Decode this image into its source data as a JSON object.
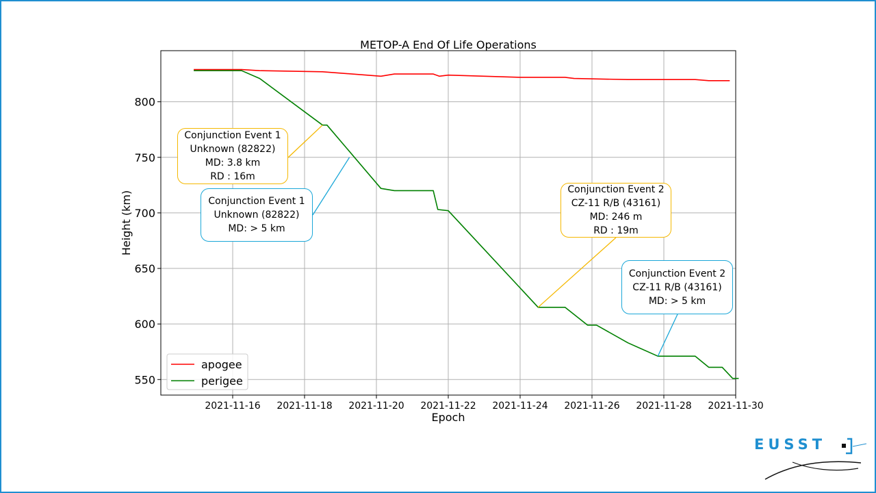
{
  "chart_data": {
    "type": "line",
    "title": "METOP-A End Of Life Operations",
    "xlabel": "Epoch",
    "ylabel": "Height (km)",
    "xlim": [
      "2021-11-14T00:00",
      "2021-11-30T00:00"
    ],
    "ylim": [
      536,
      846
    ],
    "x_ticks": [
      "2021-11-16",
      "2021-11-18",
      "2021-11-20",
      "2021-11-22",
      "2021-11-24",
      "2021-11-26",
      "2021-11-28",
      "2021-11-30"
    ],
    "y_ticks": [
      550,
      600,
      650,
      700,
      750,
      800
    ],
    "grid": true,
    "legend_position": "lower-left",
    "series": [
      {
        "name": "apogee",
        "color": "#ff0000",
        "points": [
          [
            "2021-11-14T22:00",
            829
          ],
          [
            "2021-11-16T06:00",
            829
          ],
          [
            "2021-11-16T18:00",
            828
          ],
          [
            "2021-11-18T12:00",
            827
          ],
          [
            "2021-11-20T03:00",
            823
          ],
          [
            "2021-11-20T12:00",
            825
          ],
          [
            "2021-11-21T14:00",
            825
          ],
          [
            "2021-11-21T18:00",
            823
          ],
          [
            "2021-11-22T00:00",
            824
          ],
          [
            "2021-11-24T00:00",
            822
          ],
          [
            "2021-11-25T06:00",
            822
          ],
          [
            "2021-11-25T12:00",
            821
          ],
          [
            "2021-11-27T00:00",
            820
          ],
          [
            "2021-11-28T21:00",
            820
          ],
          [
            "2021-11-29T06:00",
            819
          ],
          [
            "2021-11-29T20:00",
            819
          ]
        ]
      },
      {
        "name": "perigee",
        "color": "#008000",
        "points": [
          [
            "2021-11-14T22:00",
            828
          ],
          [
            "2021-11-16T06:00",
            828
          ],
          [
            "2021-11-16T18:00",
            821
          ],
          [
            "2021-11-18T12:00",
            779
          ],
          [
            "2021-11-18T15:00",
            779
          ],
          [
            "2021-11-20T03:00",
            722
          ],
          [
            "2021-11-20T12:00",
            720
          ],
          [
            "2021-11-21T14:00",
            720
          ],
          [
            "2021-11-21T17:00",
            703
          ],
          [
            "2021-11-22T00:00",
            702
          ],
          [
            "2021-11-24T12:00",
            615
          ],
          [
            "2021-11-25T06:00",
            615
          ],
          [
            "2021-11-25T21:00",
            599
          ],
          [
            "2021-11-26T03:00",
            599
          ],
          [
            "2021-11-27T00:00",
            583
          ],
          [
            "2021-11-27T20:00",
            571
          ],
          [
            "2021-11-28T21:00",
            571
          ],
          [
            "2021-11-29T06:00",
            561
          ],
          [
            "2021-11-29T15:00",
            561
          ],
          [
            "2021-11-29T22:00",
            551
          ],
          [
            "2021-11-30T02:00",
            551
          ]
        ]
      }
    ],
    "annotations": [
      {
        "id": "ce1-orange",
        "style": "orange",
        "lines": [
          "Conjunction Event 1",
          "Unknown (82822)",
          "MD: 3.8 km",
          "RD : 16m"
        ],
        "target": [
          "2021-11-18T12:00",
          779
        ]
      },
      {
        "id": "ce1-blue",
        "style": "blue",
        "lines": [
          "Conjunction Event 1",
          "Unknown (82822)",
          "MD: > 5 km"
        ],
        "target": [
          "2021-11-19T06:00",
          750
        ]
      },
      {
        "id": "ce2-orange",
        "style": "orange",
        "lines": [
          "Conjunction Event 2",
          "CZ-11 R/B (43161)",
          "MD: 246 m",
          "RD : 19m"
        ],
        "target": [
          "2021-11-24T12:00",
          615
        ]
      },
      {
        "id": "ce2-blue",
        "style": "blue",
        "lines": [
          "Conjunction Event 2",
          "CZ-11 R/B (43161)",
          "MD: > 5 km"
        ],
        "target": [
          "2021-11-27T20:00",
          571
        ]
      }
    ]
  },
  "colors": {
    "frame": "#1f8fd0",
    "callout_orange": "#f5b800",
    "callout_blue": "#1aa7d8",
    "grid": "#b0b0b0"
  },
  "logo": {
    "text": "EUSST",
    "icon": "eusst-logo"
  }
}
